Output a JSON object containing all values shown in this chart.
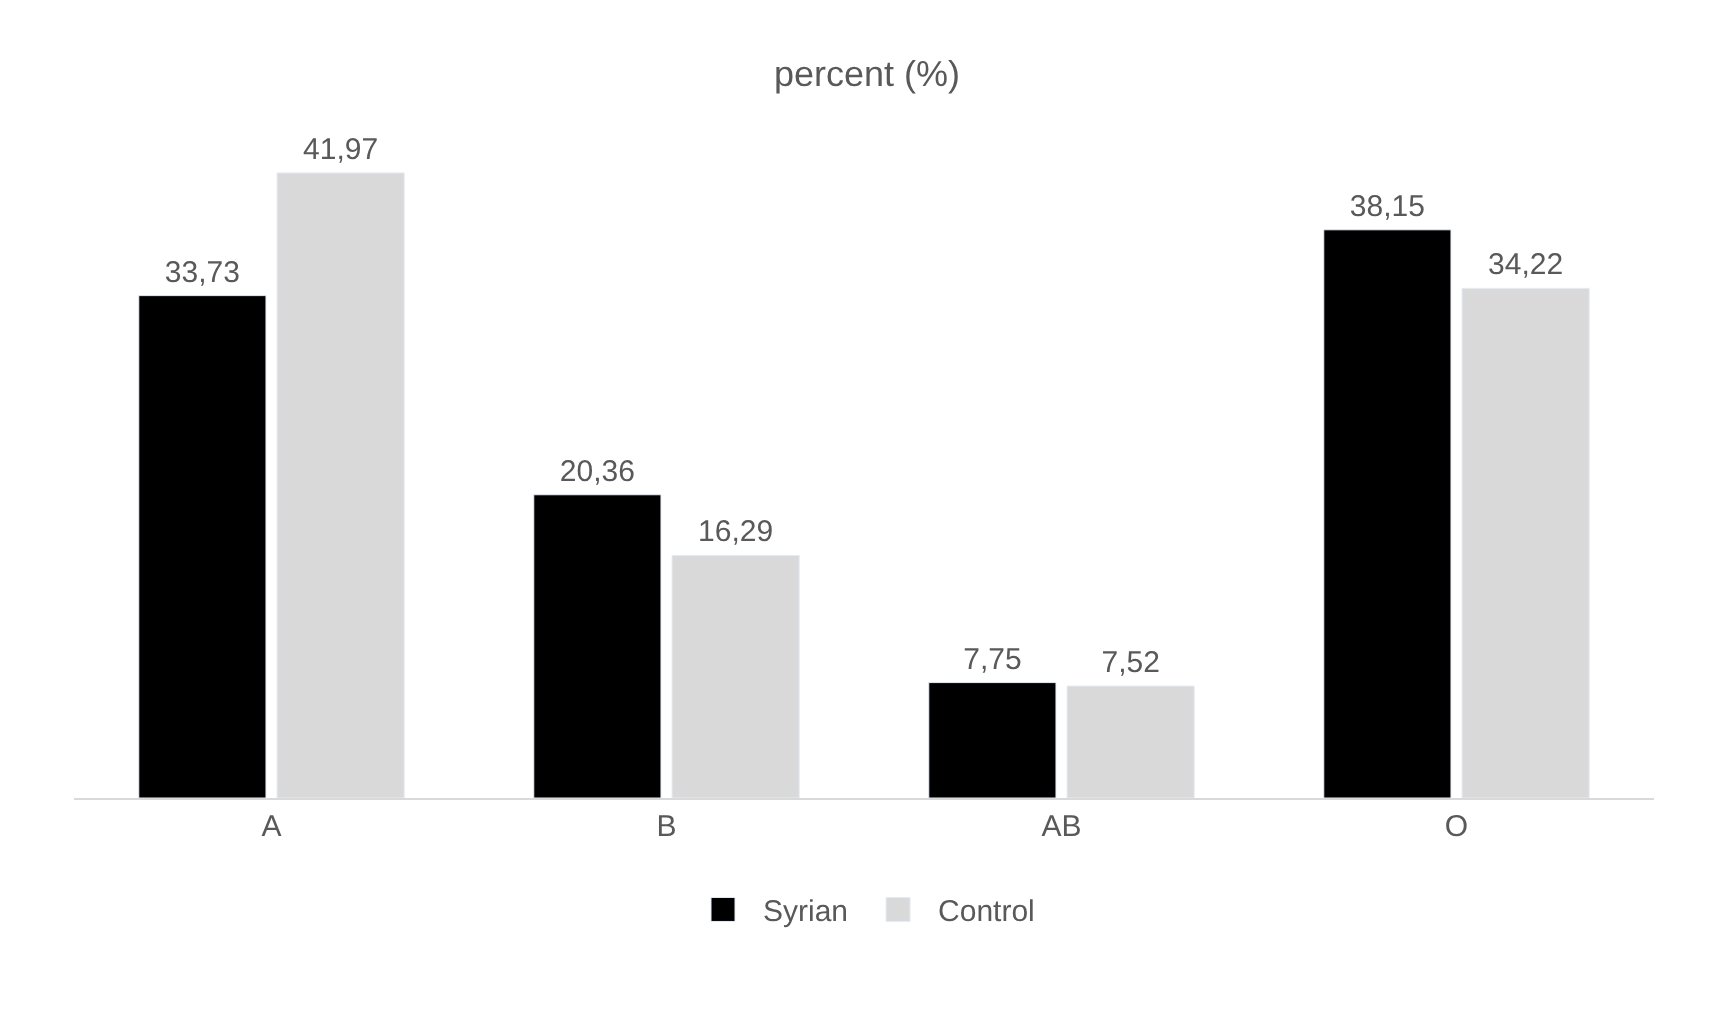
{
  "chart_data": {
    "type": "bar",
    "title": "percent (%)",
    "categories": [
      "A",
      "B",
      "AB",
      "O"
    ],
    "series": [
      {
        "name": "Syrian",
        "color": "#000000",
        "values": [
          33.73,
          20.36,
          7.75,
          38.15
        ],
        "value_labels": [
          "33,73",
          "20,36",
          "7,75",
          "38,15"
        ]
      },
      {
        "name": "Control",
        "color": "#d9d9d9",
        "values": [
          41.97,
          16.29,
          7.52,
          34.22
        ],
        "value_labels": [
          "41,97",
          "16,29",
          "7,52",
          "34,22"
        ]
      }
    ],
    "legend": "bottom"
  }
}
